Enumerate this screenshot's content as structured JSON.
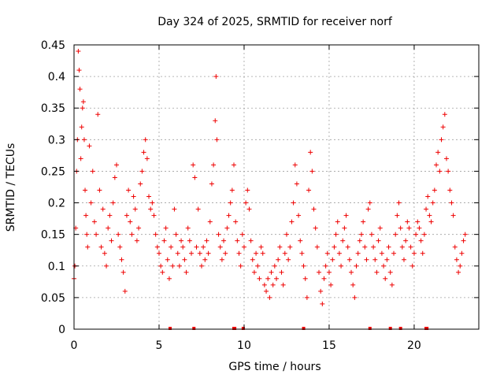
{
  "chart_data": {
    "type": "scatter",
    "title": "Day 324 of 2025, SRMTID for receiver norf",
    "xlabel": "GPS time / hours",
    "ylabel": "SRMTID / TECUs",
    "xlim": [
      0,
      23.8
    ],
    "ylim": [
      0,
      0.45
    ],
    "xticks": [
      0,
      5,
      10,
      15,
      20
    ],
    "xtick_labels": [
      "0",
      "5",
      "10",
      "15",
      "20"
    ],
    "yticks": [
      0,
      0.05,
      0.1,
      0.15,
      0.2,
      0.25,
      0.3,
      0.35,
      0.4,
      0.45
    ],
    "ytick_labels": [
      "0",
      "0.05",
      "0.1",
      "0.15",
      "0.2",
      "0.25",
      "0.3",
      "0.35",
      "0.4",
      "0.45"
    ],
    "grid": true,
    "marker": "+",
    "color": "#ee0000",
    "series": [
      {
        "name": "SRMTID",
        "description": "representative samples of the dense scatter (hour, value)",
        "points": [
          [
            0.0,
            0.08
          ],
          [
            0.05,
            0.1
          ],
          [
            0.1,
            0.16
          ],
          [
            0.15,
            0.25
          ],
          [
            0.2,
            0.3
          ],
          [
            0.25,
            0.44
          ],
          [
            0.3,
            0.41
          ],
          [
            0.35,
            0.38
          ],
          [
            0.4,
            0.27
          ],
          [
            0.45,
            0.32
          ],
          [
            0.5,
            0.35
          ],
          [
            0.55,
            0.36
          ],
          [
            0.6,
            0.3
          ],
          [
            0.65,
            0.22
          ],
          [
            0.7,
            0.18
          ],
          [
            0.75,
            0.15
          ],
          [
            0.8,
            0.13
          ],
          [
            0.9,
            0.29
          ],
          [
            1.0,
            0.2
          ],
          [
            1.1,
            0.25
          ],
          [
            1.2,
            0.17
          ],
          [
            1.3,
            0.15
          ],
          [
            1.4,
            0.34
          ],
          [
            1.5,
            0.22
          ],
          [
            1.6,
            0.13
          ],
          [
            1.7,
            0.19
          ],
          [
            1.8,
            0.12
          ],
          [
            1.9,
            0.1
          ],
          [
            2.0,
            0.16
          ],
          [
            2.1,
            0.18
          ],
          [
            2.2,
            0.14
          ],
          [
            2.3,
            0.2
          ],
          [
            2.4,
            0.24
          ],
          [
            2.5,
            0.26
          ],
          [
            2.6,
            0.15
          ],
          [
            2.7,
            0.13
          ],
          [
            2.8,
            0.11
          ],
          [
            2.9,
            0.09
          ],
          [
            3.0,
            0.06
          ],
          [
            3.1,
            0.18
          ],
          [
            3.2,
            0.22
          ],
          [
            3.3,
            0.17
          ],
          [
            3.4,
            0.15
          ],
          [
            3.5,
            0.21
          ],
          [
            3.6,
            0.19
          ],
          [
            3.7,
            0.14
          ],
          [
            3.8,
            0.16
          ],
          [
            3.9,
            0.23
          ],
          [
            4.0,
            0.25
          ],
          [
            4.1,
            0.28
          ],
          [
            4.2,
            0.3
          ],
          [
            4.3,
            0.27
          ],
          [
            4.4,
            0.21
          ],
          [
            4.5,
            0.19
          ],
          [
            4.6,
            0.2
          ],
          [
            4.7,
            0.18
          ],
          [
            4.8,
            0.15
          ],
          [
            4.9,
            0.13
          ],
          [
            5.0,
            0.12
          ],
          [
            5.1,
            0.1
          ],
          [
            5.2,
            0.09
          ],
          [
            5.3,
            0.14
          ],
          [
            5.4,
            0.16
          ],
          [
            5.5,
            0.11
          ],
          [
            5.6,
            0.08
          ],
          [
            5.7,
            0.13
          ],
          [
            5.8,
            0.1
          ],
          [
            5.9,
            0.19
          ],
          [
            6.0,
            0.15
          ],
          [
            6.1,
            0.12
          ],
          [
            6.2,
            0.1
          ],
          [
            6.3,
            0.14
          ],
          [
            6.4,
            0.13
          ],
          [
            6.5,
            0.11
          ],
          [
            6.6,
            0.09
          ],
          [
            6.7,
            0.16
          ],
          [
            6.8,
            0.14
          ],
          [
            6.9,
            0.12
          ],
          [
            7.0,
            0.26
          ],
          [
            7.1,
            0.24
          ],
          [
            7.2,
            0.13
          ],
          [
            7.3,
            0.19
          ],
          [
            7.4,
            0.12
          ],
          [
            7.5,
            0.1
          ],
          [
            7.6,
            0.13
          ],
          [
            7.7,
            0.11
          ],
          [
            7.8,
            0.14
          ],
          [
            7.9,
            0.12
          ],
          [
            8.0,
            0.17
          ],
          [
            8.1,
            0.23
          ],
          [
            8.2,
            0.26
          ],
          [
            8.3,
            0.33
          ],
          [
            8.35,
            0.4
          ],
          [
            8.4,
            0.3
          ],
          [
            8.5,
            0.15
          ],
          [
            8.6,
            0.13
          ],
          [
            8.7,
            0.11
          ],
          [
            8.8,
            0.14
          ],
          [
            8.9,
            0.12
          ],
          [
            9.0,
            0.16
          ],
          [
            9.1,
            0.18
          ],
          [
            9.2,
            0.2
          ],
          [
            9.3,
            0.22
          ],
          [
            9.4,
            0.26
          ],
          [
            9.5,
            0.17
          ],
          [
            9.6,
            0.14
          ],
          [
            9.7,
            0.12
          ],
          [
            9.8,
            0.1
          ],
          [
            9.9,
            0.15
          ],
          [
            10.0,
            0.13
          ],
          [
            10.1,
            0.2
          ],
          [
            10.2,
            0.22
          ],
          [
            10.3,
            0.19
          ],
          [
            10.4,
            0.14
          ],
          [
            10.5,
            0.11
          ],
          [
            10.6,
            0.09
          ],
          [
            10.7,
            0.12
          ],
          [
            10.8,
            0.1
          ],
          [
            10.9,
            0.08
          ],
          [
            11.0,
            0.13
          ],
          [
            11.1,
            0.12
          ],
          [
            11.2,
            0.07
          ],
          [
            11.3,
            0.06
          ],
          [
            11.4,
            0.08
          ],
          [
            11.5,
            0.05
          ],
          [
            11.6,
            0.09
          ],
          [
            11.7,
            0.07
          ],
          [
            11.8,
            0.1
          ],
          [
            11.9,
            0.08
          ],
          [
            12.0,
            0.11
          ],
          [
            12.1,
            0.13
          ],
          [
            12.2,
            0.09
          ],
          [
            12.3,
            0.07
          ],
          [
            12.4,
            0.12
          ],
          [
            12.5,
            0.15
          ],
          [
            12.6,
            0.11
          ],
          [
            12.7,
            0.13
          ],
          [
            12.8,
            0.17
          ],
          [
            12.9,
            0.2
          ],
          [
            13.0,
            0.26
          ],
          [
            13.1,
            0.23
          ],
          [
            13.2,
            0.18
          ],
          [
            13.3,
            0.14
          ],
          [
            13.4,
            0.12
          ],
          [
            13.5,
            0.1
          ],
          [
            13.6,
            0.08
          ],
          [
            13.7,
            0.05
          ],
          [
            13.8,
            0.22
          ],
          [
            13.9,
            0.28
          ],
          [
            14.0,
            0.25
          ],
          [
            14.1,
            0.19
          ],
          [
            14.2,
            0.16
          ],
          [
            14.3,
            0.13
          ],
          [
            14.4,
            0.09
          ],
          [
            14.5,
            0.06
          ],
          [
            14.6,
            0.04
          ],
          [
            14.7,
            0.08
          ],
          [
            14.8,
            0.1
          ],
          [
            14.9,
            0.12
          ],
          [
            15.0,
            0.09
          ],
          [
            15.1,
            0.07
          ],
          [
            15.2,
            0.11
          ],
          [
            15.3,
            0.13
          ],
          [
            15.4,
            0.15
          ],
          [
            15.5,
            0.17
          ],
          [
            15.6,
            0.12
          ],
          [
            15.7,
            0.1
          ],
          [
            15.8,
            0.14
          ],
          [
            15.9,
            0.16
          ],
          [
            16.0,
            0.18
          ],
          [
            16.1,
            0.13
          ],
          [
            16.2,
            0.11
          ],
          [
            16.3,
            0.09
          ],
          [
            16.4,
            0.07
          ],
          [
            16.5,
            0.05
          ],
          [
            16.6,
            0.1
          ],
          [
            16.7,
            0.12
          ],
          [
            16.8,
            0.14
          ],
          [
            16.9,
            0.15
          ],
          [
            17.0,
            0.17
          ],
          [
            17.1,
            0.13
          ],
          [
            17.2,
            0.11
          ],
          [
            17.3,
            0.19
          ],
          [
            17.4,
            0.2
          ],
          [
            17.5,
            0.15
          ],
          [
            17.6,
            0.13
          ],
          [
            17.7,
            0.11
          ],
          [
            17.8,
            0.09
          ],
          [
            17.9,
            0.14
          ],
          [
            18.0,
            0.16
          ],
          [
            18.1,
            0.12
          ],
          [
            18.2,
            0.1
          ],
          [
            18.3,
            0.08
          ],
          [
            18.4,
            0.11
          ],
          [
            18.5,
            0.13
          ],
          [
            18.6,
            0.09
          ],
          [
            18.7,
            0.07
          ],
          [
            18.8,
            0.12
          ],
          [
            18.9,
            0.15
          ],
          [
            19.0,
            0.18
          ],
          [
            19.1,
            0.2
          ],
          [
            19.2,
            0.16
          ],
          [
            19.3,
            0.13
          ],
          [
            19.4,
            0.11
          ],
          [
            19.5,
            0.14
          ],
          [
            19.6,
            0.17
          ],
          [
            19.7,
            0.16
          ],
          [
            19.8,
            0.13
          ],
          [
            19.9,
            0.1
          ],
          [
            20.0,
            0.12
          ],
          [
            20.1,
            0.15
          ],
          [
            20.2,
            0.17
          ],
          [
            20.3,
            0.16
          ],
          [
            20.4,
            0.14
          ],
          [
            20.5,
            0.12
          ],
          [
            20.6,
            0.15
          ],
          [
            20.7,
            0.19
          ],
          [
            20.8,
            0.21
          ],
          [
            20.9,
            0.18
          ],
          [
            21.0,
            0.17
          ],
          [
            21.1,
            0.2
          ],
          [
            21.2,
            0.22
          ],
          [
            21.3,
            0.26
          ],
          [
            21.4,
            0.28
          ],
          [
            21.5,
            0.25
          ],
          [
            21.6,
            0.3
          ],
          [
            21.7,
            0.32
          ],
          [
            21.8,
            0.34
          ],
          [
            21.9,
            0.27
          ],
          [
            22.0,
            0.25
          ],
          [
            22.1,
            0.22
          ],
          [
            22.2,
            0.2
          ],
          [
            22.3,
            0.18
          ],
          [
            22.4,
            0.13
          ],
          [
            22.5,
            0.11
          ],
          [
            22.6,
            0.09
          ],
          [
            22.7,
            0.1
          ],
          [
            22.8,
            0.12
          ],
          [
            22.9,
            0.14
          ],
          [
            23.0,
            0.15
          ]
        ],
        "zero_points": [
          5.65,
          7.05,
          9.4,
          9.45,
          9.95,
          13.5,
          17.4,
          18.6,
          19.2,
          20.7,
          20.75
        ]
      }
    ]
  }
}
